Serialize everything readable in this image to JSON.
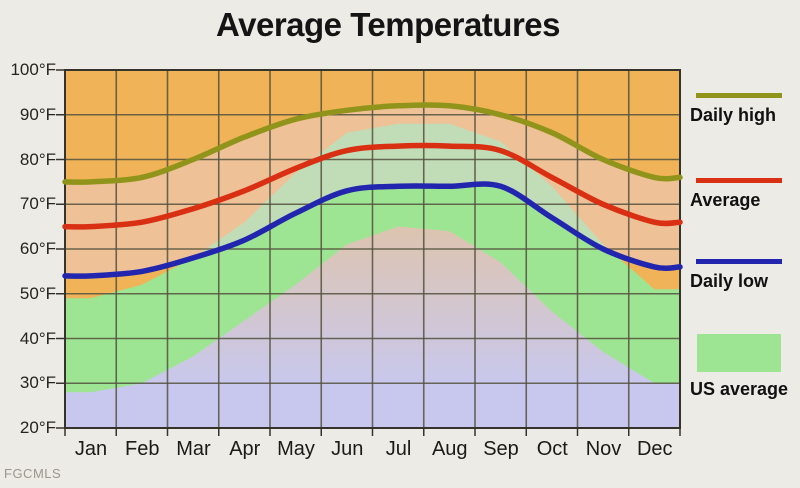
{
  "watermark": "FGCMLS",
  "chart_data": {
    "type": "line",
    "title": "Average Temperatures",
    "categories": [
      "Jan",
      "Feb",
      "Mar",
      "Apr",
      "May",
      "Jun",
      "Jul",
      "Aug",
      "Sep",
      "Oct",
      "Nov",
      "Dec"
    ],
    "xlabel": "",
    "ylabel": "",
    "ylim": [
      20,
      100
    ],
    "grid": true,
    "legend_position": "right",
    "y_ticks": [
      {
        "label": "100°F",
        "value": 100
      },
      {
        "label": "90°F",
        "value": 90
      },
      {
        "label": "80°F",
        "value": 80
      },
      {
        "label": "70°F",
        "value": 70
      },
      {
        "label": "60°F",
        "value": 60
      },
      {
        "label": "50°F",
        "value": 50
      },
      {
        "label": "40°F",
        "value": 40
      },
      {
        "label": "30°F",
        "value": 30
      },
      {
        "label": "20°F",
        "value": 20
      }
    ],
    "series": [
      {
        "name": "Daily high",
        "color": "#91941a",
        "values": [
          75,
          76,
          80,
          85,
          89,
          91,
          92,
          92,
          90,
          86,
          80,
          76
        ]
      },
      {
        "name": "Average",
        "color": "#d92f12",
        "values": [
          65,
          66,
          69,
          73,
          78,
          82,
          83,
          83,
          82,
          76,
          70,
          66
        ]
      },
      {
        "name": "Daily low",
        "color": "#2226ae",
        "values": [
          54,
          55,
          58,
          62,
          68,
          73,
          74,
          74,
          74,
          67,
          60,
          56
        ]
      }
    ],
    "bands": {
      "us_average": {
        "label": "US average",
        "color": "#9ee593",
        "high": [
          49,
          52,
          58,
          66,
          77,
          86,
          88,
          88,
          84,
          74,
          61,
          51
        ],
        "low": [
          28,
          30,
          36,
          44,
          52,
          61,
          65,
          64,
          57,
          46,
          37,
          30
        ]
      }
    },
    "colors": {
      "page_bg": "#edebe6",
      "plot_bg": "#f0b357",
      "band_green": "#9ee593",
      "below_band_top": "#dec4ae",
      "below_band_bottom": "#c8c8ee",
      "local_range_overlay": "rgba(235,210,230,0.45)",
      "gridline": "#55523f",
      "plot_border": "#35332c",
      "title_text": "#141414",
      "axis_text": "#26241f",
      "legend_text": "#111111",
      "watermark_text": "#9b958d"
    }
  }
}
